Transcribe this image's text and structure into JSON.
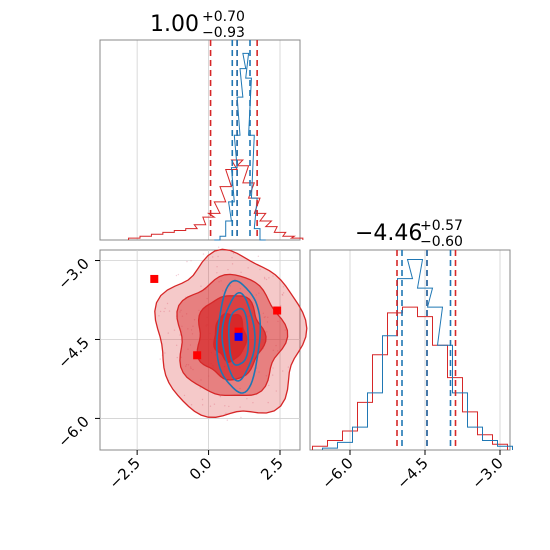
{
  "figure": {
    "title_x_main": "1.00",
    "title_x_sup": "+0.70",
    "title_x_sub": "−0.93",
    "title_y_main": "−4.46",
    "title_y_sup": "+0.57",
    "title_y_sub": "−0.60",
    "colors": {
      "red": "#d62728",
      "red_line": "#d62728",
      "blue": "#1f77b4",
      "grid": "#d0d0d0"
    }
  },
  "chart_data": [
    {
      "panel": "x-marginal",
      "type": "line",
      "xlim": [
        -3.8,
        3.2
      ],
      "grid": true,
      "series": [
        {
          "color": "#d62728",
          "x": [
            -2.6,
            -2.2,
            -1.8,
            -1.4,
            -1.0,
            -0.6,
            -0.3,
            0.0,
            0.2,
            0.4,
            0.6,
            0.8,
            1.0,
            1.2,
            1.4,
            1.6,
            1.8,
            2.0,
            2.2,
            2.5,
            2.8,
            3.1
          ],
          "values": [
            0.01,
            0.02,
            0.03,
            0.04,
            0.05,
            0.06,
            0.08,
            0.12,
            0.14,
            0.2,
            0.28,
            0.37,
            0.42,
            0.39,
            0.3,
            0.22,
            0.14,
            0.1,
            0.07,
            0.04,
            0.02,
            0.01
          ]
        },
        {
          "color": "#1f77b4",
          "x": [
            0.3,
            0.5,
            0.7,
            0.8,
            0.9,
            1.0,
            1.1,
            1.2,
            1.3,
            1.4,
            1.5,
            1.6,
            1.7,
            1.9
          ],
          "values": [
            0.0,
            0.02,
            0.1,
            0.2,
            0.38,
            0.55,
            0.75,
            0.9,
            0.98,
            0.85,
            0.55,
            0.22,
            0.06,
            0.0
          ]
        }
      ],
      "quantiles": {
        "red": [
          0.07,
          1.0,
          1.7
        ],
        "blue": [
          0.83,
          1.0,
          1.45
        ]
      }
    },
    {
      "panel": "joint",
      "type": "scatter",
      "xlim": [
        -3.8,
        3.2
      ],
      "ylim": [
        -6.6,
        -2.8
      ],
      "xticks": [
        "−2.5",
        "0.0",
        "2.5"
      ],
      "yticks": [
        "−3.0",
        "−4.5",
        "−6.0"
      ],
      "grid": true,
      "red_markers": [
        [
          -1.9,
          -3.35
        ],
        [
          -0.4,
          -4.8
        ],
        [
          1.05,
          -4.35
        ],
        [
          2.4,
          -3.95
        ]
      ],
      "blue_markers": [
        [
          1.05,
          -4.45
        ]
      ],
      "truth": [
        1.0,
        -4.46
      ]
    },
    {
      "panel": "y-marginal",
      "type": "line",
      "xlim": [
        -6.8,
        -2.8
      ],
      "xticks": [
        "−6.0",
        "−4.5",
        "−3.0"
      ],
      "grid": true,
      "series": [
        {
          "color": "#d62728",
          "x": [
            -6.6,
            -6.3,
            -6.0,
            -5.7,
            -5.4,
            -5.1,
            -4.8,
            -4.5,
            -4.2,
            -3.9,
            -3.6,
            -3.3,
            -3.0
          ],
          "values": [
            0.02,
            0.05,
            0.1,
            0.25,
            0.5,
            0.72,
            0.75,
            0.7,
            0.55,
            0.38,
            0.2,
            0.08,
            0.03
          ]
        },
        {
          "color": "#1f77b4",
          "x": [
            -6.4,
            -6.1,
            -5.8,
            -5.5,
            -5.2,
            -4.9,
            -4.7,
            -4.5,
            -4.3,
            -4.1,
            -3.8,
            -3.5,
            -3.2,
            -2.9
          ],
          "values": [
            0.01,
            0.04,
            0.12,
            0.3,
            0.6,
            0.9,
            1.0,
            0.85,
            0.75,
            0.55,
            0.3,
            0.12,
            0.05,
            0.02
          ]
        }
      ],
      "quantiles": {
        "red": [
          -5.06,
          -4.46,
          -3.89
        ],
        "blue": [
          -4.96,
          -4.46,
          -3.99
        ]
      }
    }
  ]
}
